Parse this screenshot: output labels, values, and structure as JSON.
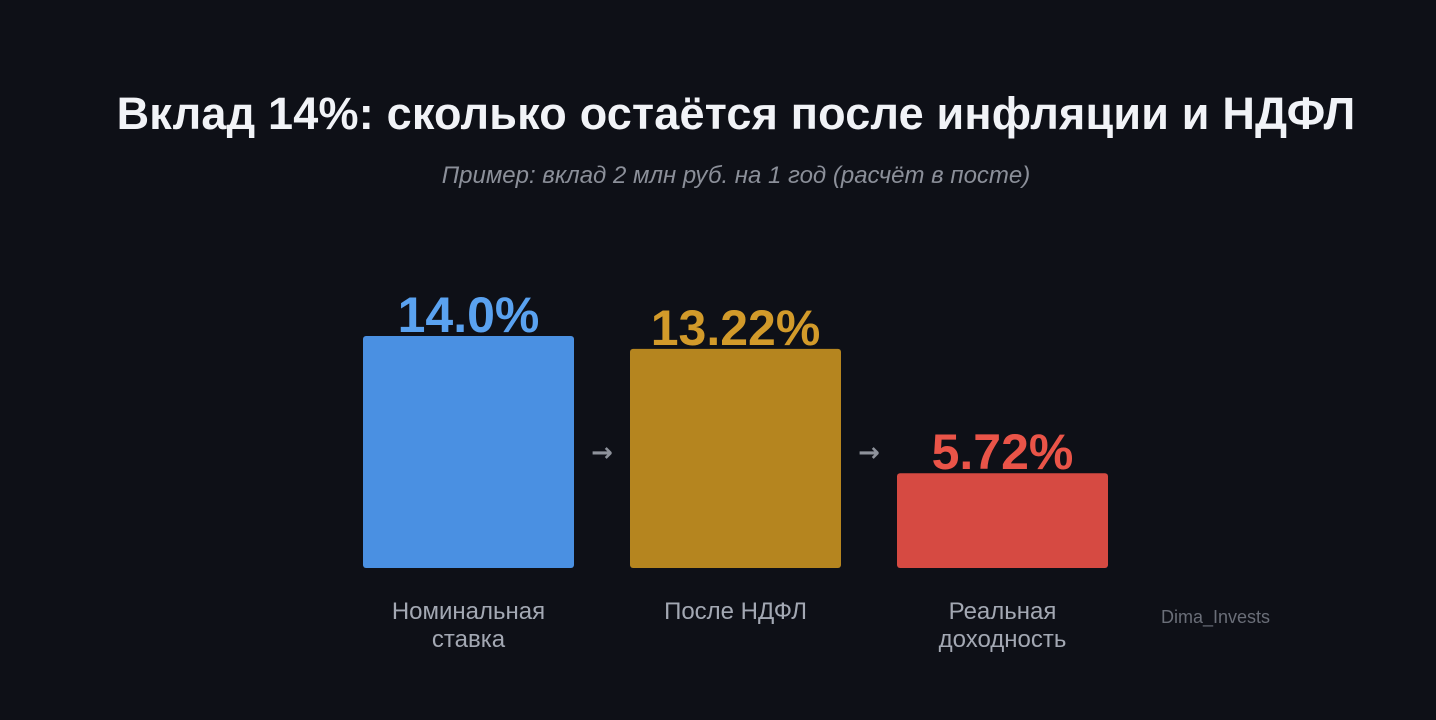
{
  "chart_data": {
    "type": "bar",
    "title": "Вклад 14%: сколько остаётся после инфляции и НДФЛ",
    "subtitle": "Пример: вклад 2 млн руб. на 1 год (расчёт в посте)",
    "categories": [
      "Номинальная\nставка",
      "После НДФЛ",
      "Реальная\nдоходность"
    ],
    "values": [
      14.0,
      13.22,
      5.72
    ],
    "value_labels": [
      "14.0%",
      "13.22%",
      "5.72%"
    ],
    "ylim": [
      0,
      14
    ],
    "grid": false,
    "bar_colors": [
      "#4a90e2",
      "#b5851f",
      "#d64a42"
    ],
    "label_colors": [
      "#5aa2f0",
      "#d29a2a",
      "#ea5448"
    ],
    "connector": "→",
    "connector_color": "#8e929b"
  },
  "watermark": "Dima_Invests"
}
